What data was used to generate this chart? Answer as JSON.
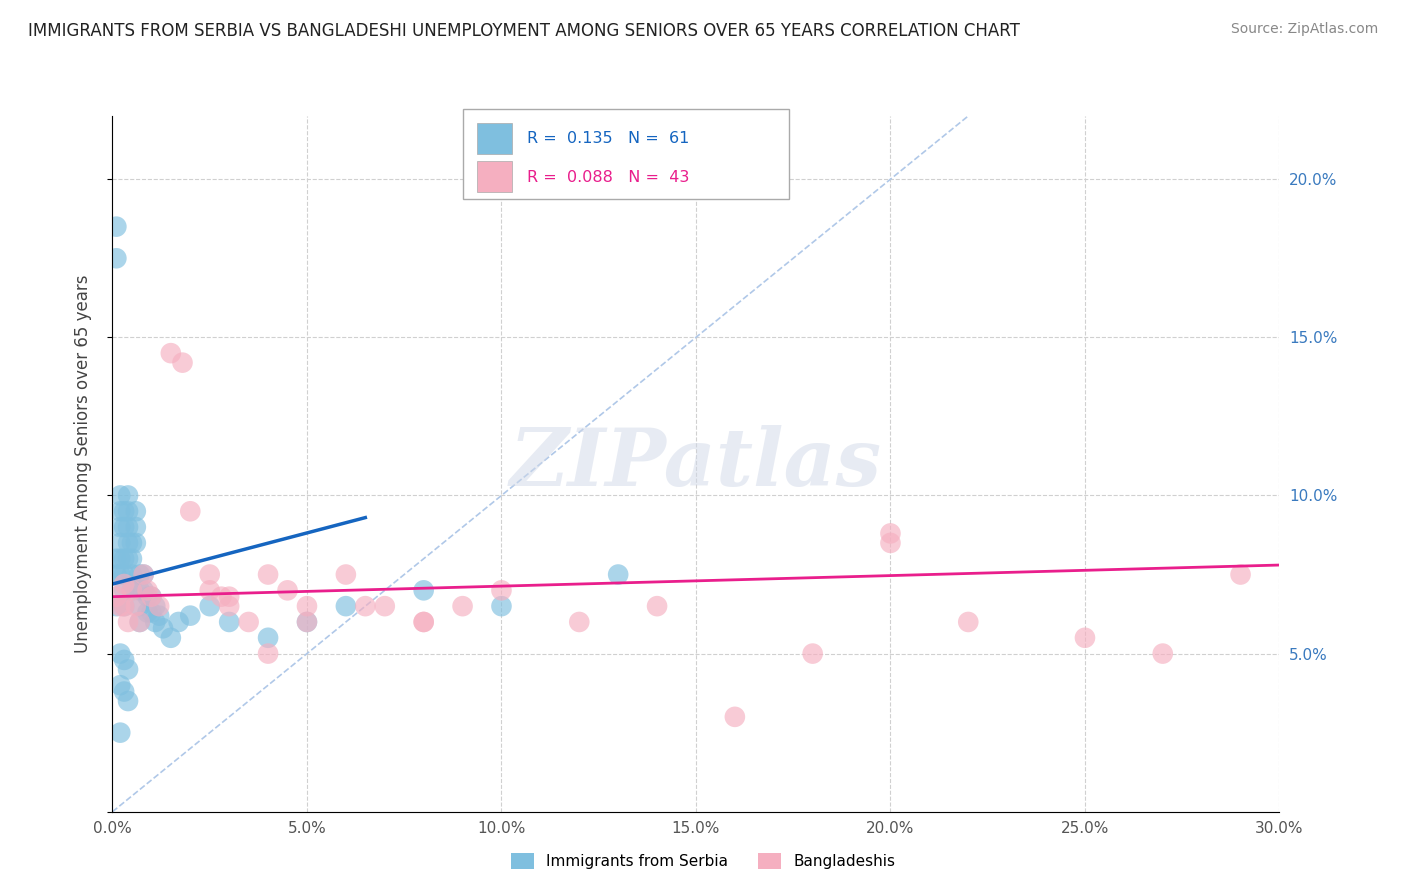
{
  "title": "IMMIGRANTS FROM SERBIA VS BANGLADESHI UNEMPLOYMENT AMONG SENIORS OVER 65 YEARS CORRELATION CHART",
  "source": "Source: ZipAtlas.com",
  "ylabel": "Unemployment Among Seniors over 65 years",
  "xlim": [
    0,
    0.3
  ],
  "ylim": [
    0,
    0.22
  ],
  "xticks": [
    0.0,
    0.05,
    0.1,
    0.15,
    0.2,
    0.25,
    0.3
  ],
  "xticklabels": [
    "0.0%",
    "5.0%",
    "10.0%",
    "15.0%",
    "20.0%",
    "25.0%",
    "30.0%"
  ],
  "yticks_left": [
    0.0,
    0.05,
    0.1,
    0.15,
    0.2
  ],
  "yticklabels_left": [
    "",
    "",
    "",
    "",
    ""
  ],
  "yticks_right": [
    0.0,
    0.05,
    0.1,
    0.15,
    0.2
  ],
  "yticklabels_right": [
    "",
    "5.0%",
    "10.0%",
    "15.0%",
    "20.0%"
  ],
  "serbia_color": "#7fbfdf",
  "bangladesh_color": "#f5afc0",
  "serbia_line_color": "#1565c0",
  "bangladesh_line_color": "#e91e8c",
  "ref_line_color": "#b0c8e8",
  "grid_color": "#d0d0d0",
  "watermark_text": "ZIPatlas",
  "legend_R_serbia": "R =  0.135",
  "legend_N_serbia": "N =  61",
  "legend_R_bangladesh": "R =  0.088",
  "legend_N_bangladesh": "N =  43",
  "serbia_x": [
    0.001,
    0.001,
    0.001,
    0.001,
    0.001,
    0.002,
    0.002,
    0.002,
    0.002,
    0.002,
    0.002,
    0.003,
    0.003,
    0.003,
    0.003,
    0.003,
    0.003,
    0.004,
    0.004,
    0.004,
    0.004,
    0.004,
    0.005,
    0.005,
    0.005,
    0.005,
    0.006,
    0.006,
    0.006,
    0.007,
    0.007,
    0.007,
    0.007,
    0.008,
    0.008,
    0.009,
    0.009,
    0.01,
    0.01,
    0.011,
    0.011,
    0.012,
    0.013,
    0.015,
    0.017,
    0.02,
    0.025,
    0.03,
    0.04,
    0.05,
    0.06,
    0.08,
    0.1,
    0.13,
    0.002,
    0.003,
    0.004,
    0.002,
    0.003,
    0.004,
    0.002
  ],
  "serbia_y": [
    0.185,
    0.175,
    0.08,
    0.075,
    0.065,
    0.1,
    0.095,
    0.09,
    0.085,
    0.08,
    0.075,
    0.095,
    0.09,
    0.08,
    0.075,
    0.07,
    0.065,
    0.1,
    0.095,
    0.09,
    0.085,
    0.08,
    0.085,
    0.08,
    0.075,
    0.07,
    0.095,
    0.09,
    0.085,
    0.075,
    0.07,
    0.065,
    0.06,
    0.075,
    0.07,
    0.068,
    0.063,
    0.068,
    0.063,
    0.065,
    0.06,
    0.062,
    0.058,
    0.055,
    0.06,
    0.062,
    0.065,
    0.06,
    0.055,
    0.06,
    0.065,
    0.07,
    0.065,
    0.075,
    0.05,
    0.048,
    0.045,
    0.04,
    0.038,
    0.035,
    0.025
  ],
  "bangladesh_x": [
    0.001,
    0.002,
    0.003,
    0.003,
    0.004,
    0.005,
    0.006,
    0.007,
    0.008,
    0.009,
    0.01,
    0.012,
    0.015,
    0.018,
    0.02,
    0.025,
    0.028,
    0.03,
    0.035,
    0.04,
    0.045,
    0.05,
    0.06,
    0.07,
    0.08,
    0.09,
    0.1,
    0.12,
    0.14,
    0.16,
    0.18,
    0.2,
    0.22,
    0.25,
    0.27,
    0.29,
    0.025,
    0.03,
    0.04,
    0.05,
    0.065,
    0.08,
    0.2
  ],
  "bangladesh_y": [
    0.068,
    0.065,
    0.072,
    0.065,
    0.06,
    0.07,
    0.065,
    0.06,
    0.075,
    0.07,
    0.068,
    0.065,
    0.145,
    0.142,
    0.095,
    0.075,
    0.068,
    0.065,
    0.06,
    0.075,
    0.07,
    0.065,
    0.075,
    0.065,
    0.06,
    0.065,
    0.07,
    0.06,
    0.065,
    0.03,
    0.05,
    0.085,
    0.06,
    0.055,
    0.05,
    0.075,
    0.07,
    0.068,
    0.05,
    0.06,
    0.065,
    0.06,
    0.088
  ]
}
